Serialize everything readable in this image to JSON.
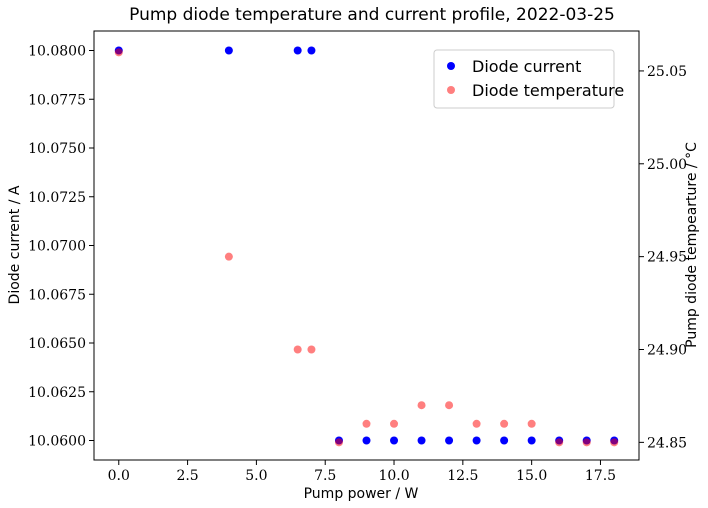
{
  "chart_data": {
    "type": "scatter",
    "title": "Pump diode temperature and current profile, 2022-03-25",
    "xlabel": "Pump power / W",
    "ylabel": "Diode current / A",
    "y2label": "Pump diode tempearture / °C",
    "xlim": [
      -0.9,
      18.9
    ],
    "ylim": [
      10.059,
      10.081
    ],
    "y2lim": [
      24.8405,
      25.0715
    ],
    "x_ticks": [
      "0.0",
      "2.5",
      "5.0",
      "7.5",
      "10.0",
      "12.5",
      "15.0",
      "17.5"
    ],
    "x_tick_values": [
      0,
      2.5,
      5,
      7.5,
      10,
      12.5,
      15,
      17.5
    ],
    "y_ticks": [
      "10.0600",
      "10.0625",
      "10.0650",
      "10.0675",
      "10.0700",
      "10.0725",
      "10.0750",
      "10.0775",
      "10.0800"
    ],
    "y_tick_values": [
      10.06,
      10.0625,
      10.065,
      10.0675,
      10.07,
      10.0725,
      10.075,
      10.0775,
      10.08
    ],
    "y2_ticks": [
      "24.85",
      "24.90",
      "24.95",
      "25.00",
      "25.05"
    ],
    "y2_tick_values": [
      24.85,
      24.9,
      24.95,
      25.0,
      25.05
    ],
    "legend_position": "top-right",
    "grid": false,
    "series": [
      {
        "name": "Diode current",
        "axis": "left",
        "color": "#0000ff",
        "x": [
          0,
          4,
          6.5,
          7,
          8,
          9,
          10,
          11,
          12,
          13,
          14,
          15,
          16,
          17,
          18
        ],
        "y": [
          10.08,
          10.08,
          10.08,
          10.08,
          10.06,
          10.06,
          10.06,
          10.06,
          10.06,
          10.06,
          10.06,
          10.06,
          10.06,
          10.06,
          10.06
        ]
      },
      {
        "name": "Diode temperature",
        "axis": "right",
        "color": "#ff0000",
        "opacity": 0.5,
        "x": [
          0,
          4,
          6.5,
          7,
          8,
          9,
          10,
          11,
          12,
          13,
          14,
          15,
          16,
          17,
          18
        ],
        "y": [
          25.06,
          24.95,
          24.9,
          24.9,
          24.85,
          24.86,
          24.86,
          24.87,
          24.87,
          24.86,
          24.86,
          24.86,
          24.85,
          24.85,
          24.85
        ]
      }
    ]
  }
}
